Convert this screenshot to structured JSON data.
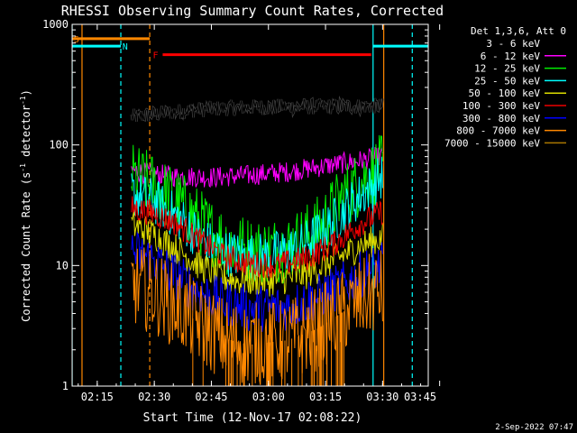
{
  "chart_data": {
    "type": "line",
    "title": "RHESSI Observing Summary Count Rates, Corrected",
    "xlabel": "Start Time (12-Nov-17 02:08:22)",
    "ylabel_main": "Corrected Count Rate (s",
    "ylabel_sup1": "-1",
    "ylabel_mid": " detector",
    "ylabel_sup2": "-1",
    "ylabel_end": ")",
    "yscale": "log",
    "xlim_minutes": [
      128.4,
      222
    ],
    "ylim": [
      1,
      1000
    ],
    "x_ticks": [
      {
        "label": "02:15",
        "min": 135
      },
      {
        "label": "02:30",
        "min": 150
      },
      {
        "label": "02:45",
        "min": 165
      },
      {
        "label": "03:00",
        "min": 180
      },
      {
        "label": "03:15",
        "min": 195
      },
      {
        "label": "03:30",
        "min": 210
      },
      {
        "label": "03:45",
        "min": 225
      }
    ],
    "y_ticks": [
      {
        "label": "1",
        "v": 1
      },
      {
        "label": "10",
        "v": 10
      },
      {
        "label": "100",
        "v": 100
      },
      {
        "label": "1000",
        "v": 1000
      }
    ],
    "legend_header": "Det 1,3,6, Att 0",
    "legend_placement": "right",
    "series": [
      {
        "name": "3 - 6 keV",
        "color": "#000000",
        "noise": 0.03,
        "points": [
          [
            144,
            170
          ],
          [
            150,
            180
          ],
          [
            160,
            195
          ],
          [
            170,
            203
          ],
          [
            180,
            207
          ],
          [
            190,
            208
          ],
          [
            200,
            209
          ],
          [
            207,
            210
          ],
          [
            210,
            210
          ]
        ]
      },
      {
        "name": "6 - 12 keV",
        "color": "#ff00ff",
        "noise": 0.04,
        "points": [
          [
            144,
            62
          ],
          [
            148,
            58
          ],
          [
            155,
            55
          ],
          [
            165,
            54
          ],
          [
            175,
            56
          ],
          [
            185,
            60
          ],
          [
            195,
            67
          ],
          [
            205,
            75
          ],
          [
            210,
            80
          ]
        ]
      },
      {
        "name": "12 - 25 keV",
        "color": "#00ee00",
        "noise": 0.13,
        "points": [
          [
            144,
            55
          ],
          [
            150,
            45
          ],
          [
            157,
            32
          ],
          [
            164,
            20
          ],
          [
            170,
            15
          ],
          [
            177,
            13
          ],
          [
            185,
            14
          ],
          [
            193,
            20
          ],
          [
            200,
            38
          ],
          [
            206,
            55
          ],
          [
            210,
            65
          ]
        ]
      },
      {
        "name": "25 - 50 keV",
        "color": "#00ffff",
        "noise": 0.09,
        "points": [
          [
            144,
            40
          ],
          [
            150,
            34
          ],
          [
            157,
            24
          ],
          [
            163,
            16
          ],
          [
            168,
            13
          ],
          [
            173,
            12
          ],
          [
            180,
            12
          ],
          [
            188,
            14
          ],
          [
            195,
            20
          ],
          [
            202,
            33
          ],
          [
            210,
            55
          ]
        ]
      },
      {
        "name": "50 - 100 keV",
        "color": "#dddd00",
        "noise": 0.06,
        "points": [
          [
            144,
            22
          ],
          [
            150,
            18
          ],
          [
            157,
            13
          ],
          [
            163,
            9.5
          ],
          [
            168,
            8
          ],
          [
            172,
            7.5
          ],
          [
            182,
            7.5
          ],
          [
            190,
            8.5
          ],
          [
            197,
            11
          ],
          [
            204,
            14.5
          ],
          [
            210,
            17
          ]
        ]
      },
      {
        "name": "100 - 300 keV",
        "color": "#ee0000",
        "noise": 0.05,
        "points": [
          [
            144,
            30
          ],
          [
            150,
            27
          ],
          [
            156,
            22
          ],
          [
            162,
            16
          ],
          [
            168,
            12
          ],
          [
            174,
            10.5
          ],
          [
            182,
            10
          ],
          [
            190,
            11.5
          ],
          [
            197,
            15
          ],
          [
            204,
            22
          ],
          [
            210,
            28
          ]
        ]
      },
      {
        "name": "300 - 800 keV",
        "color": "#0000ff",
        "noise": 0.09,
        "points": [
          [
            144,
            13
          ],
          [
            150,
            11
          ],
          [
            156,
            8
          ],
          [
            162,
            6
          ],
          [
            168,
            5
          ],
          [
            175,
            4.4
          ],
          [
            185,
            4.5
          ],
          [
            193,
            5.5
          ],
          [
            200,
            7
          ],
          [
            206,
            9
          ],
          [
            210,
            10
          ]
        ]
      },
      {
        "name": "800 - 7000 keV",
        "color": "#ff8800",
        "noise": 0.16,
        "points": [
          [
            144,
            7
          ],
          [
            150,
            6
          ],
          [
            156,
            4.5
          ],
          [
            162,
            3.3
          ],
          [
            168,
            2.5
          ],
          [
            175,
            2.2
          ],
          [
            185,
            2.4
          ],
          [
            193,
            3
          ],
          [
            200,
            4.2
          ],
          [
            206,
            5.5
          ],
          [
            210,
            6.3
          ]
        ]
      },
      {
        "name": "7000 - 15000 keV",
        "color": "#aa7700",
        "noise": 0.0,
        "points": []
      }
    ],
    "markers": [
      {
        "label": "S",
        "color": "#ff8800"
      },
      {
        "label": "N",
        "color": "#00ffff"
      },
      {
        "label": "F",
        "color": "#ff0000"
      }
    ],
    "annotation_bars": [
      {
        "color": "#ff8800",
        "x0": 128.4,
        "x1": 148.8,
        "v": 760
      },
      {
        "color": "#00ffff",
        "x0": 128.4,
        "x1": 141.2,
        "v": 660
      },
      {
        "color": "#00ffff",
        "x0": 207.5,
        "x1": 222,
        "v": 660
      },
      {
        "color": "#ff0000",
        "x0": 152.2,
        "x1": 207.0,
        "v": 560
      }
    ],
    "vlines": [
      {
        "color": "#00ffff",
        "x": 128.4,
        "style": "solid"
      },
      {
        "color": "#ff8800",
        "x": 131.0,
        "style": "solid"
      },
      {
        "color": "#00ffff",
        "x": 141.2,
        "style": "dashed"
      },
      {
        "color": "#ff8800",
        "x": 148.8,
        "style": "dashed"
      },
      {
        "color": "#00ffff",
        "x": 207.5,
        "style": "solid"
      },
      {
        "color": "#ff8800",
        "x": 210.3,
        "style": "solid"
      },
      {
        "color": "#00ffff",
        "x": 217.8,
        "style": "dashed"
      }
    ]
  },
  "footer_date": "2-Sep-2022 07:47"
}
